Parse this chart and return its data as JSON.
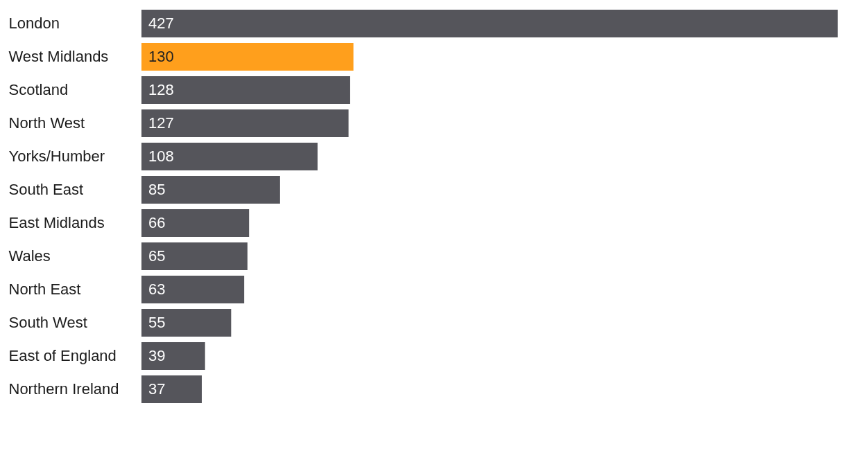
{
  "chart_data": {
    "type": "bar",
    "orientation": "horizontal",
    "data_labels": true,
    "grid": false,
    "categories": [
      "London",
      "West Midlands",
      "Scotland",
      "North West",
      "Yorks/Humber",
      "South East",
      "East Midlands",
      "Wales",
      "North East",
      "South West",
      "East of England",
      "Northern Ireland"
    ],
    "values": [
      427,
      130,
      128,
      127,
      108,
      85,
      66,
      65,
      63,
      55,
      39,
      37
    ],
    "colors": [
      "#55555b",
      "#ff9f1c",
      "#55555b",
      "#55555b",
      "#55555b",
      "#55555b",
      "#55555b",
      "#55555b",
      "#55555b",
      "#55555b",
      "#55555b",
      "#55555b"
    ]
  }
}
